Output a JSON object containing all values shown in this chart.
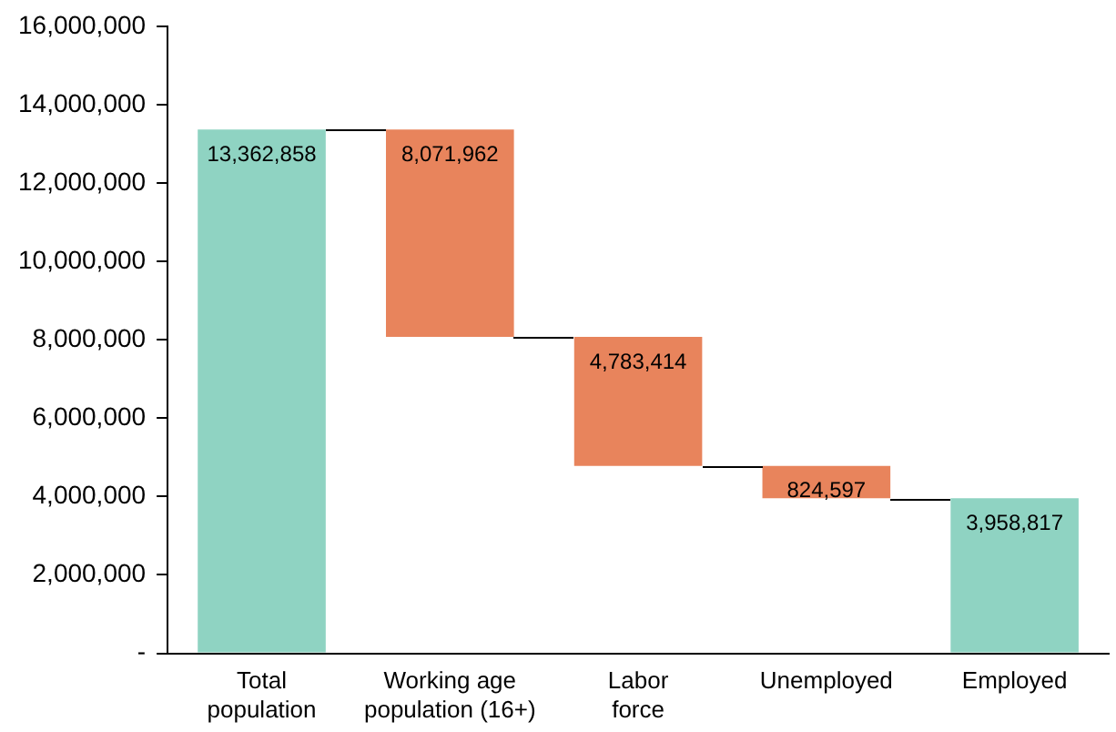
{
  "chart_data": {
    "type": "bar",
    "categories": [
      "Total population",
      "Working age population (16+)",
      "Labor force",
      "Unemployed",
      "Employed"
    ],
    "base": [
      0,
      8071962,
      4783414,
      3958817,
      0
    ],
    "values": [
      13362858,
      5290896,
      3288548,
      824597,
      3958817
    ],
    "colors": [
      "#8fd3c2",
      "#e8845c",
      "#e8845c",
      "#e8845c",
      "#8fd3c2"
    ],
    "value_labels": [
      "13,362,858",
      null,
      null,
      "824,597",
      "3,958,817"
    ],
    "annotations": [
      "8,071,962",
      "4,783,414"
    ],
    "ylim": [
      0,
      16000000
    ],
    "yticks": [
      {
        "value": 0,
        "label": "-"
      },
      {
        "value": 2000000,
        "label": "2,000,000"
      },
      {
        "value": 4000000,
        "label": "4,000,000"
      },
      {
        "value": 6000000,
        "label": "6,000,000"
      },
      {
        "value": 8000000,
        "label": "8,000,000"
      },
      {
        "value": 10000000,
        "label": "10,000,000"
      },
      {
        "value": 12000000,
        "label": "12,000,000"
      },
      {
        "value": 14000000,
        "label": "14,000,000"
      },
      {
        "value": 16000000,
        "label": "16,000,000"
      }
    ],
    "grid": false,
    "legend": false
  }
}
